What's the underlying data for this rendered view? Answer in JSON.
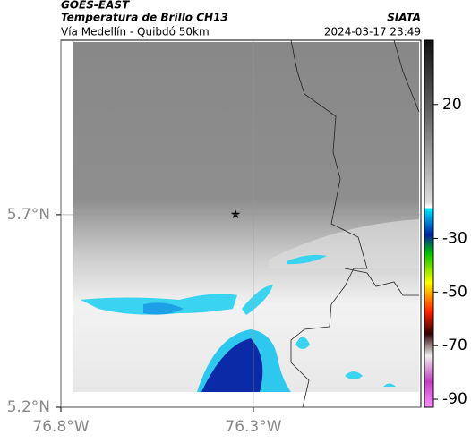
{
  "header": {
    "title": "GOES-EAST",
    "subtitle": "Temperatura de Brillo CH13",
    "source": "SIATA",
    "region": "Vía Medellín - Quibdó 50km",
    "datetime": "2024-03-17 23:49"
  },
  "map": {
    "xlim": [
      -76.8,
      -75.865
    ],
    "ylim": [
      5.2,
      6.153
    ],
    "xticks": [
      {
        "value": -76.8,
        "label": "76.8°W"
      },
      {
        "value": -76.3,
        "label": "76.3°W"
      }
    ],
    "yticks": [
      {
        "value": 5.7,
        "label": "5.7°N"
      },
      {
        "value": 5.2,
        "label": "5.2°N"
      }
    ]
  },
  "colorbar": {
    "lim": [
      -93,
      44
    ],
    "ticks": [
      20,
      -30,
      -50,
      -70,
      -90
    ]
  }
}
